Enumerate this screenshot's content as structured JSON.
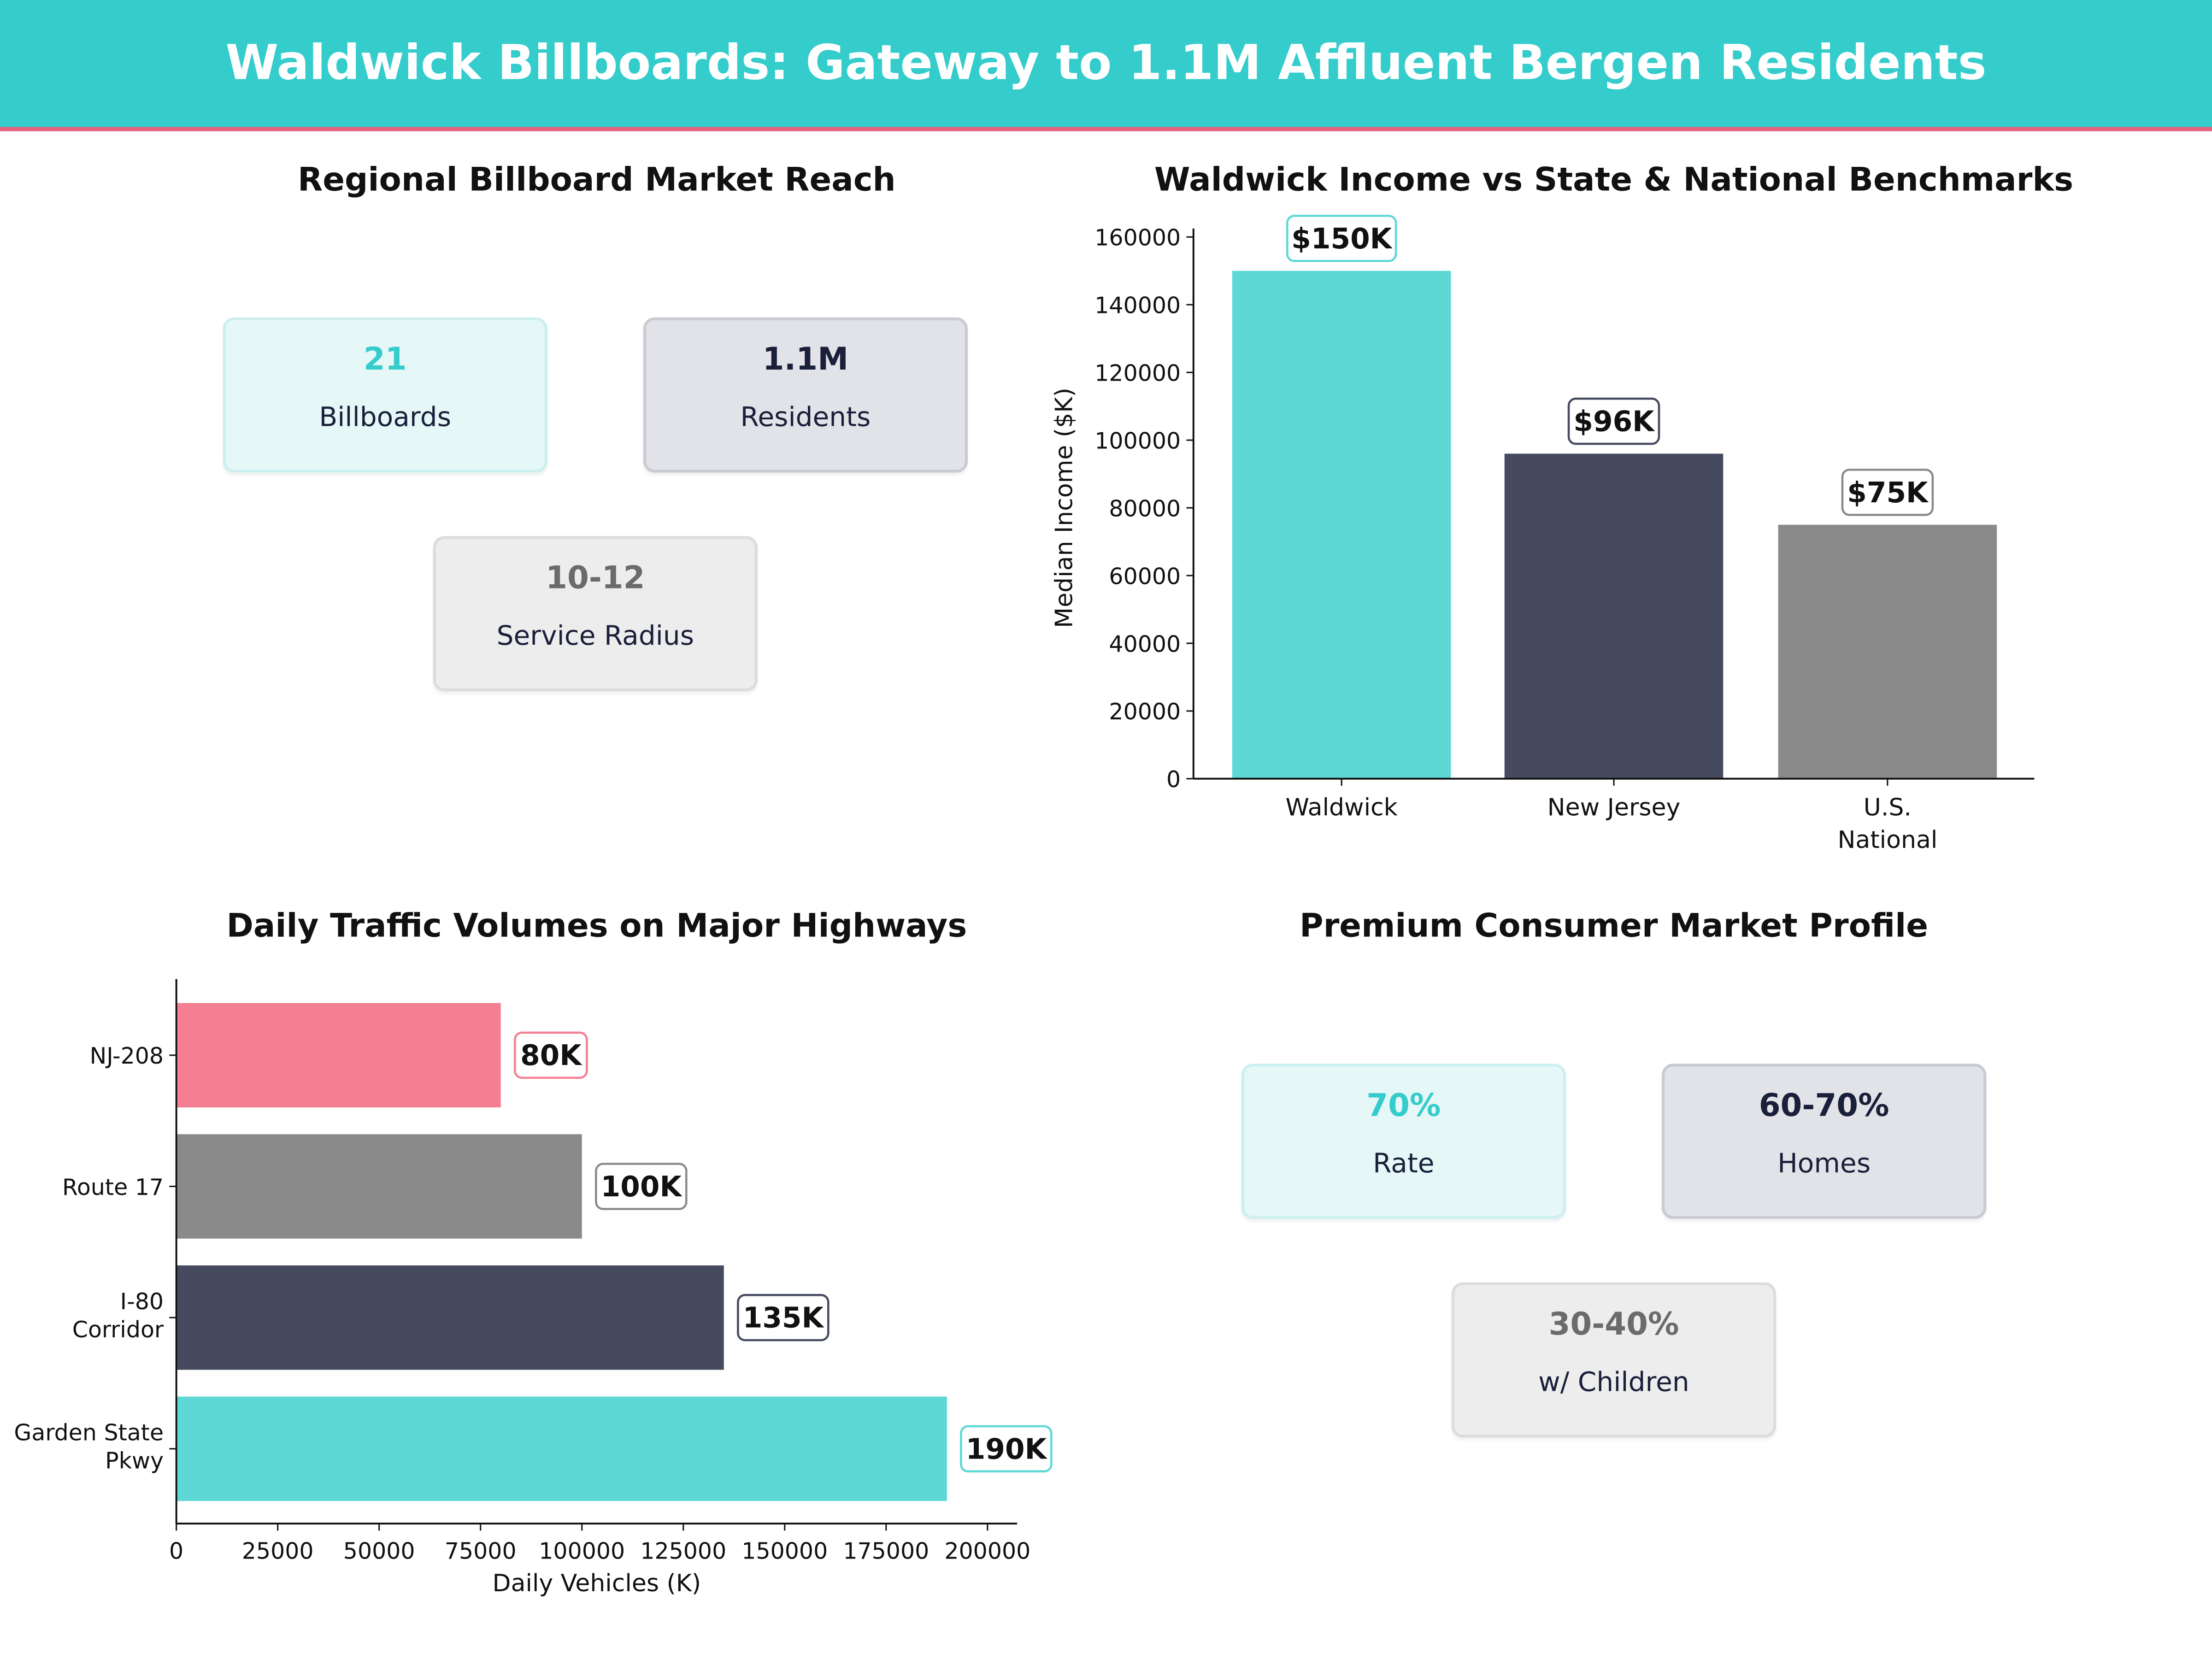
{
  "header": {
    "title": "Waldwick Billboards: Gateway to 1.1M Affluent Bergen Residents"
  },
  "colors": {
    "teal": "#35CCCC",
    "bar_teal": "#5DD8D5",
    "navy": "#454A5F",
    "gray": "#8A8A8A",
    "pink": "#F57F92",
    "accent_line": "#E8637A"
  },
  "reach": {
    "title": "Regional Billboard Market Reach",
    "cards": [
      {
        "value": "21",
        "label": "Billboards"
      },
      {
        "value": "1.1M",
        "label": "Residents"
      },
      {
        "value": "10-12",
        "label": "Service Radius"
      }
    ]
  },
  "profile": {
    "title": "Premium Consumer Market Profile",
    "cards": [
      {
        "value": "70%",
        "label": "Rate"
      },
      {
        "value": "60-70%",
        "label": "Homes"
      },
      {
        "value": "30-40%",
        "label": "w/ Children"
      }
    ]
  },
  "chart_data": [
    {
      "type": "bar",
      "title": "Waldwick Income vs State & National Benchmarks",
      "categories": [
        "Waldwick",
        "New Jersey",
        "U.S. National"
      ],
      "values": [
        150000,
        96000,
        75000
      ],
      "data_labels": [
        "$150K",
        "$96K",
        "$75K"
      ],
      "xlabel": "",
      "ylabel": "Median Income ($K)",
      "ylim": [
        0,
        160000
      ],
      "yticks": [
        0,
        20000,
        40000,
        60000,
        80000,
        100000,
        120000,
        140000,
        160000
      ],
      "colors": [
        "#5DD8D5",
        "#454A5F",
        "#8A8A8A"
      ],
      "grid": false
    },
    {
      "type": "bar",
      "orientation": "horizontal",
      "title": "Daily Traffic Volumes on Major Highways",
      "categories": [
        "NJ-208",
        "Route 17",
        "I-80 Corridor",
        "Garden State Pkwy"
      ],
      "values": [
        80000,
        100000,
        135000,
        190000
      ],
      "data_labels": [
        "80K",
        "100K",
        "135K",
        "190K"
      ],
      "xlabel": "Daily Vehicles (K)",
      "ylabel": "",
      "xlim": [
        0,
        207000
      ],
      "xticks": [
        0,
        25000,
        50000,
        75000,
        100000,
        125000,
        150000,
        175000,
        200000
      ],
      "colors": [
        "#F57F92",
        "#8A8A8A",
        "#454A5F",
        "#5DD8D5"
      ],
      "grid": false
    }
  ]
}
